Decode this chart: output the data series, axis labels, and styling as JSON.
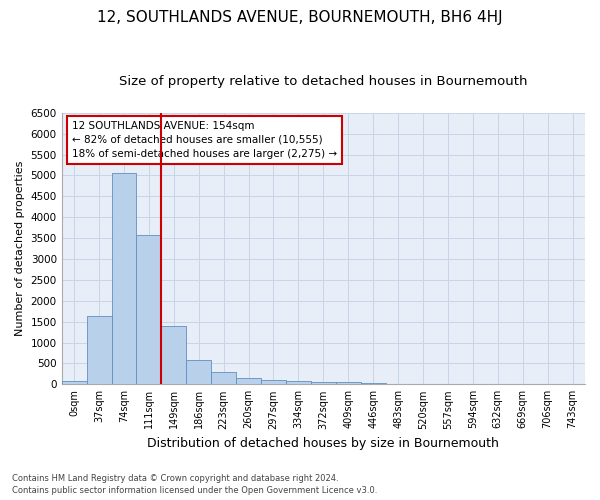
{
  "title": "12, SOUTHLANDS AVENUE, BOURNEMOUTH, BH6 4HJ",
  "subtitle": "Size of property relative to detached houses in Bournemouth",
  "xlabel": "Distribution of detached houses by size in Bournemouth",
  "ylabel": "Number of detached properties",
  "footnote1": "Contains HM Land Registry data © Crown copyright and database right 2024.",
  "footnote2": "Contains public sector information licensed under the Open Government Licence v3.0.",
  "bar_labels": [
    "0sqm",
    "37sqm",
    "74sqm",
    "111sqm",
    "149sqm",
    "186sqm",
    "223sqm",
    "260sqm",
    "297sqm",
    "334sqm",
    "372sqm",
    "409sqm",
    "446sqm",
    "483sqm",
    "520sqm",
    "557sqm",
    "594sqm",
    "632sqm",
    "669sqm",
    "706sqm",
    "743sqm"
  ],
  "bar_values": [
    75,
    1630,
    5060,
    3580,
    1390,
    590,
    295,
    155,
    105,
    70,
    55,
    50,
    35,
    0,
    0,
    0,
    0,
    0,
    0,
    0,
    0
  ],
  "bar_color": "#b8d0ea",
  "bar_edge_color": "#6090c0",
  "vline_color": "#cc0000",
  "annotation_box_text": "12 SOUTHLANDS AVENUE: 154sqm\n← 82% of detached houses are smaller (10,555)\n18% of semi-detached houses are larger (2,275) →",
  "annotation_box_color": "#cc0000",
  "ylim": [
    0,
    6500
  ],
  "yticks": [
    0,
    500,
    1000,
    1500,
    2000,
    2500,
    3000,
    3500,
    4000,
    4500,
    5000,
    5500,
    6000,
    6500
  ],
  "title_fontsize": 11,
  "subtitle_fontsize": 9.5,
  "xlabel_fontsize": 9,
  "ylabel_fontsize": 8,
  "grid_color": "#c8d4e8",
  "bg_color": "#e8eef8"
}
